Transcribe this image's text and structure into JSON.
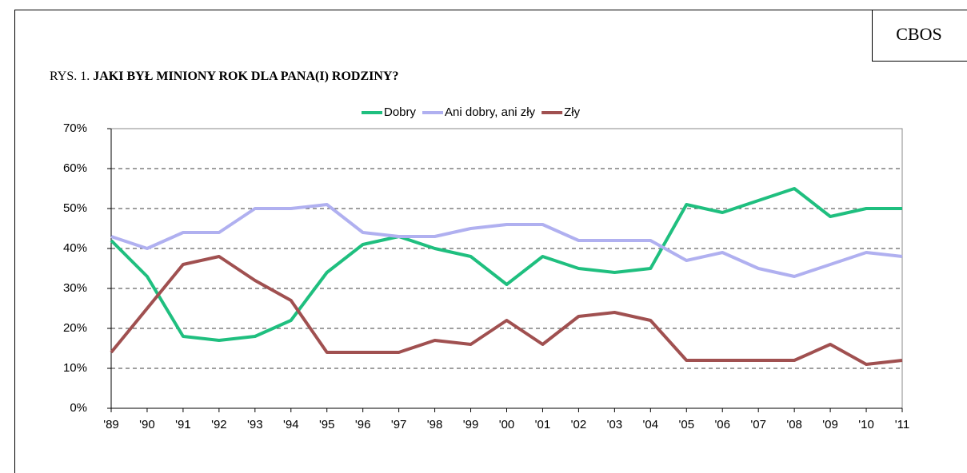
{
  "chart_data": {
    "type": "line",
    "source_label": "CBOS",
    "figure_label": "RYS. 1.",
    "title": "JAKI BYŁ MINIONY ROK DLA PANA(I) RODZINY?",
    "categories": [
      "'89",
      "'90",
      "'91",
      "'92",
      "'93",
      "'94",
      "'95",
      "'96",
      "'97",
      "'98",
      "'99",
      "'00",
      "'01",
      "'02",
      "'03",
      "'04",
      "'05",
      "'06",
      "'07",
      "'08",
      "'09",
      "'10",
      "'11"
    ],
    "series": [
      {
        "name": "Dobry",
        "color": "#1fbf7f",
        "values": [
          42,
          33,
          18,
          17,
          18,
          22,
          34,
          41,
          43,
          40,
          38,
          31,
          38,
          35,
          34,
          35,
          51,
          49,
          52,
          55,
          48,
          50,
          50
        ]
      },
      {
        "name": "Ani dobry, ani zły",
        "color": "#b0b0f0",
        "values": [
          43,
          40,
          44,
          44,
          50,
          50,
          51,
          44,
          43,
          43,
          45,
          46,
          46,
          42,
          42,
          42,
          37,
          39,
          35,
          33,
          36,
          39,
          38
        ]
      },
      {
        "name": "Zły",
        "color": "#a05050",
        "values": [
          14,
          25,
          36,
          38,
          32,
          27,
          14,
          14,
          14,
          17,
          16,
          22,
          16,
          23,
          24,
          22,
          12,
          12,
          12,
          12,
          16,
          11,
          12
        ]
      }
    ],
    "ylim": [
      0,
      70
    ],
    "yticks": [
      {
        "value": 0,
        "label": "0%"
      },
      {
        "value": 10,
        "label": "10%"
      },
      {
        "value": 20,
        "label": "20%"
      },
      {
        "value": 30,
        "label": "30%"
      },
      {
        "value": 40,
        "label": "40%"
      },
      {
        "value": 50,
        "label": "50%"
      },
      {
        "value": 60,
        "label": "60%"
      },
      {
        "value": 70,
        "label": "70%"
      }
    ],
    "grid": true,
    "legend": "top"
  }
}
